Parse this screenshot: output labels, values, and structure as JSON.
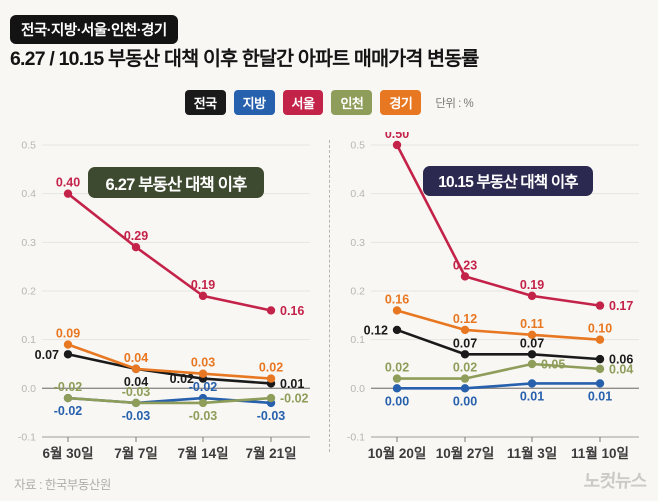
{
  "page": {
    "background": "#f8f7f4"
  },
  "header": {
    "badge": "전국·지방·서울·인천·경기",
    "title": "6.27 / 10.15 부동산 대책 이후 한달간 아파트 매매가격 변동률"
  },
  "legend": {
    "items": [
      {
        "label": "전국",
        "color": "#1a1a1a"
      },
      {
        "label": "지방",
        "color": "#2760ad"
      },
      {
        "label": "서울",
        "color": "#c42349"
      },
      {
        "label": "인천",
        "color": "#8e9d59"
      },
      {
        "label": "경기",
        "color": "#e87722"
      }
    ],
    "unit_label": "단위 : %"
  },
  "chart_data": [
    {
      "type": "line",
      "title": "6.27 부동산 대책 이후",
      "title_bg": "#3d4a2f",
      "categories": [
        "6월 30일",
        "7월 7일",
        "7월 14일",
        "7월 21일"
      ],
      "ylim": [
        -0.1,
        0.5
      ],
      "yticks": [
        0.5,
        0.4,
        0.3,
        0.2,
        0.1,
        0.0,
        -0.1
      ],
      "grid": true,
      "series": [
        {
          "name": "서울",
          "color": "#c42349",
          "values": [
            0.4,
            0.29,
            0.19,
            0.16
          ],
          "label_pos": [
            "above",
            "above",
            "above",
            "right"
          ]
        },
        {
          "name": "경기",
          "color": "#e87722",
          "values": [
            0.09,
            0.04,
            0.03,
            0.02
          ],
          "label_pos": [
            "above",
            "above",
            "above",
            "above"
          ]
        },
        {
          "name": "전국",
          "color": "#1a1a1a",
          "values": [
            0.07,
            0.04,
            0.02,
            0.01
          ],
          "label_pos": [
            "left",
            "below",
            "left",
            "right"
          ]
        },
        {
          "name": "인천",
          "color": "#8e9d59",
          "values": [
            -0.02,
            -0.03,
            -0.03,
            -0.02
          ],
          "label_pos": [
            "above",
            "above",
            "below",
            "right"
          ]
        },
        {
          "name": "지방",
          "color": "#2760ad",
          "values": [
            -0.02,
            -0.03,
            -0.02,
            -0.03
          ],
          "label_pos": [
            "below",
            "below",
            "above",
            "below"
          ]
        }
      ]
    },
    {
      "type": "line",
      "title": "10.15 부동산 대책 이후",
      "title_bg": "#2c2950",
      "categories": [
        "10월 20일",
        "10월 27일",
        "11월 3일",
        "11월 10일"
      ],
      "ylim": [
        -0.1,
        0.5
      ],
      "yticks": [
        0.5,
        0.4,
        0.3,
        0.2,
        0.1,
        0.0,
        -0.1
      ],
      "grid": true,
      "series": [
        {
          "name": "서울",
          "color": "#c42349",
          "values": [
            0.5,
            0.23,
            0.19,
            0.17
          ],
          "label_pos": [
            "above",
            "above",
            "above",
            "right"
          ]
        },
        {
          "name": "경기",
          "color": "#e87722",
          "values": [
            0.16,
            0.12,
            0.11,
            0.1
          ],
          "label_pos": [
            "above",
            "above",
            "above",
            "above"
          ]
        },
        {
          "name": "전국",
          "color": "#1a1a1a",
          "values": [
            0.12,
            0.07,
            0.07,
            0.06
          ],
          "label_pos": [
            "left",
            "above",
            "above",
            "right"
          ]
        },
        {
          "name": "인천",
          "color": "#8e9d59",
          "values": [
            0.02,
            0.02,
            0.05,
            0.04
          ],
          "label_pos": [
            "above",
            "above",
            "right",
            "right"
          ]
        },
        {
          "name": "지방",
          "color": "#2760ad",
          "values": [
            0.0,
            0.0,
            0.01,
            0.01
          ],
          "label_pos": [
            "below",
            "below",
            "below",
            "below"
          ]
        }
      ]
    }
  ],
  "footer": {
    "source": "자료 : 한국부동산원",
    "logo": "노컷뉴스"
  }
}
